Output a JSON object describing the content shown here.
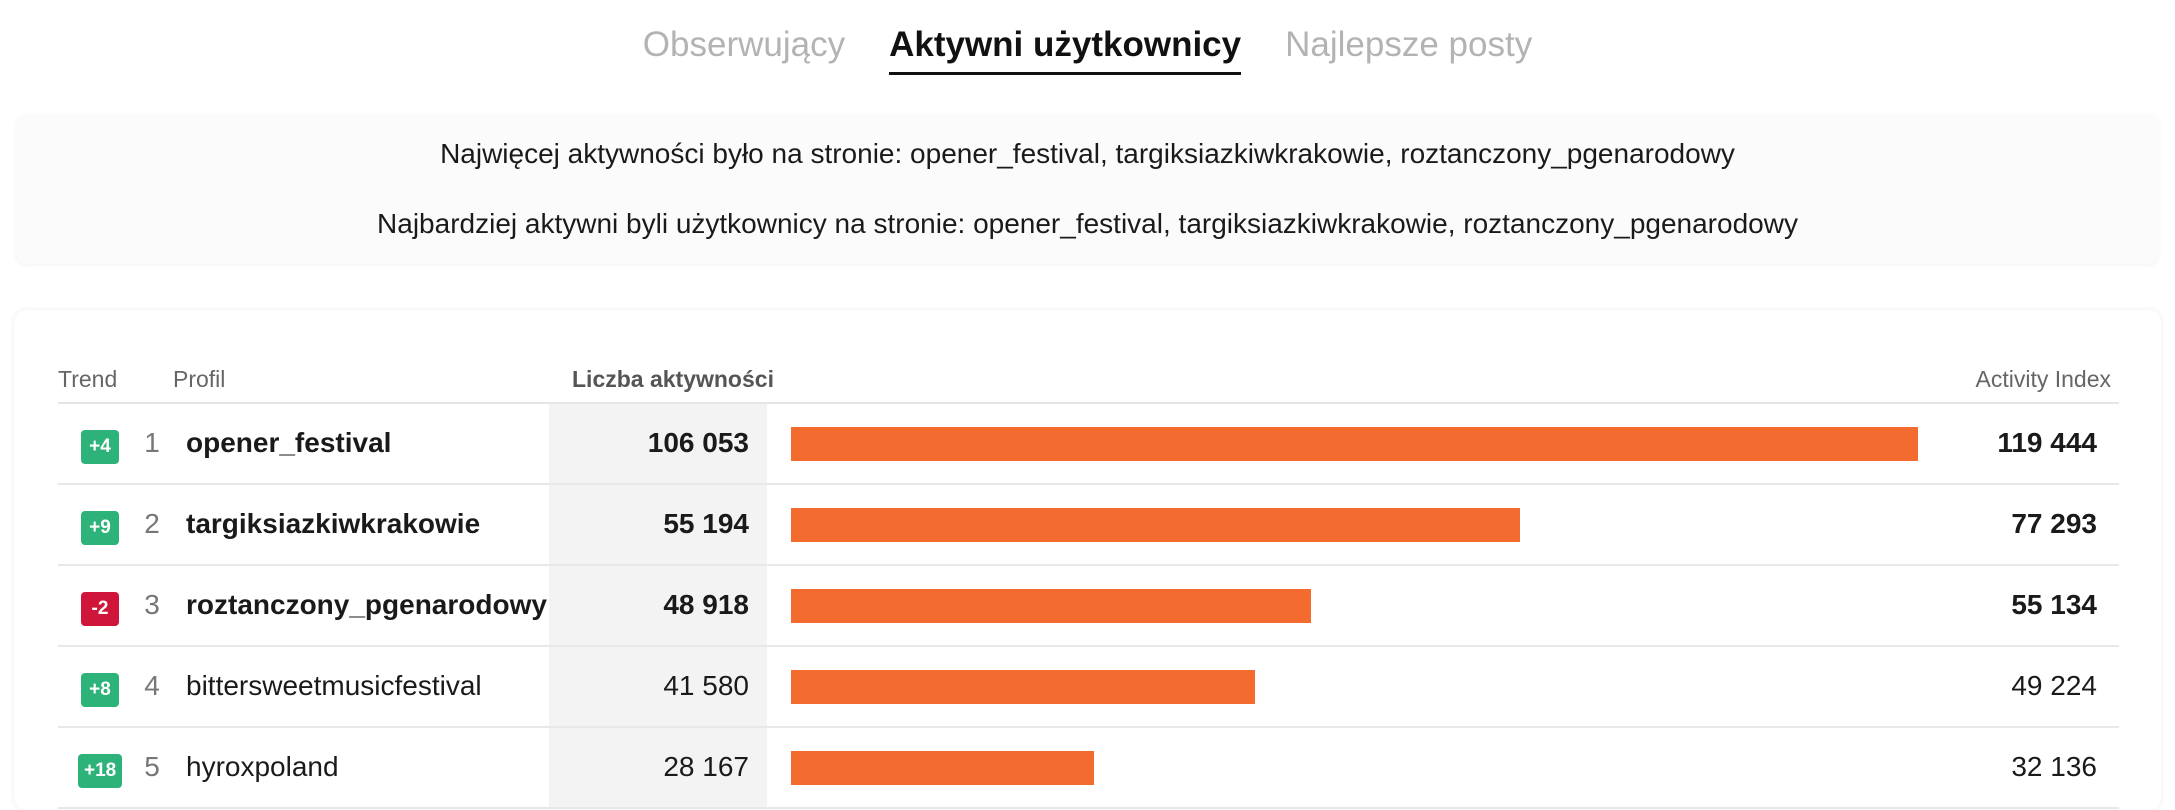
{
  "tabs": [
    {
      "label": "Obserwujący",
      "active": false
    },
    {
      "label": "Aktywni użytkownicy",
      "active": true
    },
    {
      "label": "Najlepsze posty",
      "active": false
    }
  ],
  "summary": {
    "line1": "Najwięcej aktywności było na stronie: opener_festival, targiksiazkiwkrakowie, roztanczony_pgenarodowy",
    "line2": "Najbardziej aktywni byli użytkownicy na stronie: opener_festival, targiksiazkiwkrakowie, roztanczony_pgenarodowy"
  },
  "table": {
    "headers": {
      "trend": "Trend",
      "profile": "Profil",
      "count": "Liczba aktywności",
      "index": "Activity Index"
    },
    "bar_max": 119444,
    "rows": [
      {
        "trend": "+4",
        "trend_dir": "up",
        "rank": "1",
        "profile": "opener_festival",
        "count": "106 053",
        "index": "119 444",
        "index_value": 119444,
        "bold": true
      },
      {
        "trend": "+9",
        "trend_dir": "up",
        "rank": "2",
        "profile": "targiksiazkiwkrakowie",
        "count": "55 194",
        "index": "77 293",
        "index_value": 77293,
        "bold": true
      },
      {
        "trend": "-2",
        "trend_dir": "down",
        "rank": "3",
        "profile": "roztanczony_pgenarodowy",
        "count": "48 918",
        "index": "55 134",
        "index_value": 55134,
        "bold": true
      },
      {
        "trend": "+8",
        "trend_dir": "up",
        "rank": "4",
        "profile": "bittersweetmusicfestival",
        "count": "41 580",
        "index": "49 224",
        "index_value": 49224,
        "bold": false
      },
      {
        "trend": "+18",
        "trend_dir": "up",
        "rank": "5",
        "profile": "hyroxpoland",
        "count": "28 167",
        "index": "32 136",
        "index_value": 32136,
        "bold": false
      }
    ]
  },
  "colors": {
    "up": "#2db37a",
    "down": "#d0153a",
    "bar": "#f36b2f"
  }
}
